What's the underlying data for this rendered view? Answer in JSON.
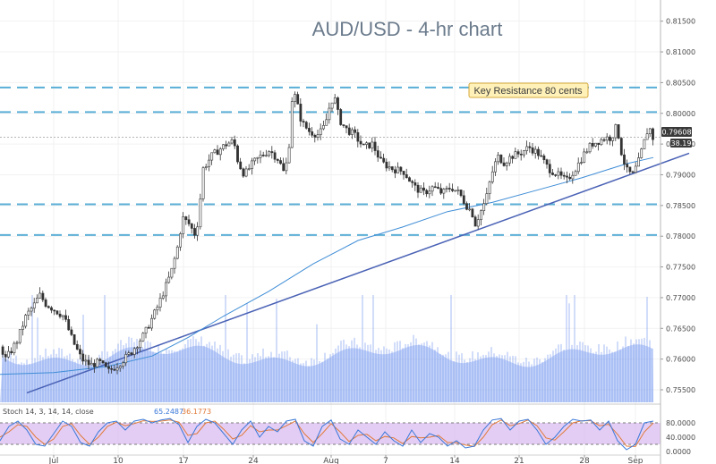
{
  "chart_data": {
    "type": "candlestick",
    "title": "AUD/USD - 4-hr chart",
    "x_labels": [
      "Jul",
      "10",
      "17",
      "24",
      "Aug",
      "7",
      "14",
      "21",
      "28",
      "Sep"
    ],
    "y_ticks": [
      "0.81500",
      "0.81000",
      "0.80500",
      "0.80000",
      "0.79500",
      "0.79000",
      "0.78500",
      "0.78000",
      "0.77500",
      "0.77000",
      "0.76500",
      "0.76000",
      "0.75500"
    ],
    "ylim": [
      0.7534,
      0.8167
    ],
    "price_label": "0.79608",
    "secondary_label": "38.19",
    "horizontal_levels": [
      0.8042,
      0.8002,
      0.7852,
      0.7802
    ],
    "annotation": "Key Resistance 80 cents",
    "price_path": [
      [
        0,
        0.762
      ],
      [
        5,
        0.76
      ],
      [
        10,
        0.761
      ],
      [
        18,
        0.763
      ],
      [
        28,
        0.767
      ],
      [
        38,
        0.769
      ],
      [
        43,
        0.7705
      ],
      [
        50,
        0.769
      ],
      [
        60,
        0.768
      ],
      [
        70,
        0.767
      ],
      [
        80,
        0.763
      ],
      [
        90,
        0.76
      ],
      [
        100,
        0.759
      ],
      [
        110,
        0.7595
      ],
      [
        120,
        0.758
      ],
      [
        130,
        0.759
      ],
      [
        145,
        0.761
      ],
      [
        160,
        0.764
      ],
      [
        175,
        0.7685
      ],
      [
        190,
        0.774
      ],
      [
        197,
        0.778
      ],
      [
        203,
        0.783
      ],
      [
        210,
        0.782
      ],
      [
        218,
        0.78
      ],
      [
        222,
        0.785
      ],
      [
        226,
        0.791
      ],
      [
        235,
        0.793
      ],
      [
        243,
        0.794
      ],
      [
        252,
        0.795
      ],
      [
        260,
        0.7955
      ],
      [
        265,
        0.792
      ],
      [
        272,
        0.79
      ],
      [
        282,
        0.792
      ],
      [
        290,
        0.793
      ],
      [
        300,
        0.794
      ],
      [
        310,
        0.7925
      ],
      [
        317,
        0.79
      ],
      [
        322,
        0.795
      ],
      [
        326,
        0.804
      ],
      [
        330,
        0.802
      ],
      [
        336,
        0.7985
      ],
      [
        345,
        0.797
      ],
      [
        355,
        0.7965
      ],
      [
        362,
        0.798
      ],
      [
        367,
        0.801
      ],
      [
        372,
        0.803
      ],
      [
        378,
        0.799
      ],
      [
        385,
        0.7975
      ],
      [
        395,
        0.7965
      ],
      [
        405,
        0.7945
      ],
      [
        415,
        0.795
      ],
      [
        425,
        0.792
      ],
      [
        437,
        0.791
      ],
      [
        450,
        0.7905
      ],
      [
        462,
        0.788
      ],
      [
        472,
        0.787
      ],
      [
        483,
        0.788
      ],
      [
        493,
        0.787
      ],
      [
        503,
        0.788
      ],
      [
        512,
        0.787
      ],
      [
        520,
        0.785
      ],
      [
        526,
        0.784
      ],
      [
        530,
        0.782
      ],
      [
        536,
        0.784
      ],
      [
        542,
        0.786
      ],
      [
        548,
        0.79
      ],
      [
        555,
        0.793
      ],
      [
        562,
        0.792
      ],
      [
        570,
        0.793
      ],
      [
        580,
        0.7935
      ],
      [
        590,
        0.7945
      ],
      [
        600,
        0.7935
      ],
      [
        612,
        0.791
      ],
      [
        622,
        0.79
      ],
      [
        632,
        0.789
      ],
      [
        642,
        0.791
      ],
      [
        652,
        0.7935
      ],
      [
        660,
        0.795
      ],
      [
        668,
        0.7955
      ],
      [
        675,
        0.796
      ],
      [
        682,
        0.796
      ],
      [
        688,
        0.798
      ],
      [
        694,
        0.793
      ],
      [
        700,
        0.7905
      ],
      [
        706,
        0.79
      ],
      [
        712,
        0.792
      ],
      [
        718,
        0.795
      ],
      [
        724,
        0.798
      ],
      [
        728,
        0.796
      ]
    ],
    "trendline": [
      [
        30,
        0.7545
      ],
      [
        770,
        0.7935
      ]
    ],
    "moving_average": [
      [
        0,
        0.7575
      ],
      [
        60,
        0.7578
      ],
      [
        120,
        0.7588
      ],
      [
        170,
        0.7605
      ],
      [
        210,
        0.7635
      ],
      [
        250,
        0.767
      ],
      [
        300,
        0.771
      ],
      [
        350,
        0.7755
      ],
      [
        400,
        0.7793
      ],
      [
        450,
        0.7815
      ],
      [
        500,
        0.784
      ],
      [
        550,
        0.7855
      ],
      [
        600,
        0.7875
      ],
      [
        650,
        0.7895
      ],
      [
        700,
        0.7918
      ],
      [
        730,
        0.7928
      ]
    ],
    "stochastic": {
      "label": "Stoch 14, 3, 14, 14, close",
      "k_value": "65.2487",
      "d_value": "36.1773",
      "ticks": [
        "80.0000",
        "40.0000",
        "0.0000"
      ],
      "upper": 80,
      "lower": 20,
      "k_path": [
        [
          0,
          30
        ],
        [
          10,
          70
        ],
        [
          20,
          85
        ],
        [
          30,
          60
        ],
        [
          40,
          20
        ],
        [
          50,
          15
        ],
        [
          60,
          50
        ],
        [
          70,
          85
        ],
        [
          80,
          70
        ],
        [
          90,
          25
        ],
        [
          100,
          15
        ],
        [
          110,
          55
        ],
        [
          120,
          80
        ],
        [
          130,
          85
        ],
        [
          140,
          60
        ],
        [
          150,
          85
        ],
        [
          160,
          90
        ],
        [
          170,
          80
        ],
        [
          180,
          88
        ],
        [
          190,
          92
        ],
        [
          200,
          75
        ],
        [
          210,
          25
        ],
        [
          220,
          70
        ],
        [
          230,
          90
        ],
        [
          240,
          80
        ],
        [
          250,
          50
        ],
        [
          260,
          20
        ],
        [
          270,
          60
        ],
        [
          280,
          85
        ],
        [
          290,
          40
        ],
        [
          300,
          70
        ],
        [
          310,
          55
        ],
        [
          320,
          85
        ],
        [
          330,
          90
        ],
        [
          340,
          30
        ],
        [
          350,
          15
        ],
        [
          360,
          70
        ],
        [
          370,
          88
        ],
        [
          380,
          35
        ],
        [
          390,
          20
        ],
        [
          400,
          60
        ],
        [
          410,
          40
        ],
        [
          420,
          20
        ],
        [
          430,
          55
        ],
        [
          440,
          30
        ],
        [
          450,
          15
        ],
        [
          460,
          60
        ],
        [
          470,
          25
        ],
        [
          480,
          50
        ],
        [
          490,
          40
        ],
        [
          500,
          15
        ],
        [
          510,
          30
        ],
        [
          520,
          10
        ],
        [
          530,
          15
        ],
        [
          540,
          60
        ],
        [
          550,
          88
        ],
        [
          560,
          92
        ],
        [
          570,
          60
        ],
        [
          580,
          85
        ],
        [
          590,
          90
        ],
        [
          600,
          60
        ],
        [
          610,
          20
        ],
        [
          620,
          40
        ],
        [
          630,
          70
        ],
        [
          640,
          90
        ],
        [
          650,
          85
        ],
        [
          660,
          88
        ],
        [
          670,
          60
        ],
        [
          680,
          85
        ],
        [
          690,
          30
        ],
        [
          700,
          5
        ],
        [
          710,
          20
        ],
        [
          720,
          80
        ],
        [
          730,
          85
        ]
      ],
      "d_path": [
        [
          0,
          40
        ],
        [
          10,
          55
        ],
        [
          20,
          75
        ],
        [
          30,
          70
        ],
        [
          40,
          40
        ],
        [
          50,
          20
        ],
        [
          60,
          35
        ],
        [
          70,
          70
        ],
        [
          80,
          78
        ],
        [
          90,
          45
        ],
        [
          100,
          20
        ],
        [
          110,
          40
        ],
        [
          120,
          70
        ],
        [
          130,
          82
        ],
        [
          140,
          72
        ],
        [
          150,
          78
        ],
        [
          160,
          86
        ],
        [
          170,
          84
        ],
        [
          180,
          85
        ],
        [
          190,
          88
        ],
        [
          200,
          82
        ],
        [
          210,
          45
        ],
        [
          220,
          50
        ],
        [
          230,
          80
        ],
        [
          240,
          85
        ],
        [
          250,
          62
        ],
        [
          260,
          35
        ],
        [
          270,
          45
        ],
        [
          280,
          72
        ],
        [
          290,
          55
        ],
        [
          300,
          60
        ],
        [
          310,
          60
        ],
        [
          320,
          72
        ],
        [
          330,
          85
        ],
        [
          340,
          50
        ],
        [
          350,
          25
        ],
        [
          360,
          50
        ],
        [
          370,
          78
        ],
        [
          380,
          55
        ],
        [
          390,
          28
        ],
        [
          400,
          45
        ],
        [
          410,
          48
        ],
        [
          420,
          30
        ],
        [
          430,
          42
        ],
        [
          440,
          38
        ],
        [
          450,
          22
        ],
        [
          460,
          42
        ],
        [
          470,
          38
        ],
        [
          480,
          40
        ],
        [
          490,
          45
        ],
        [
          500,
          25
        ],
        [
          510,
          25
        ],
        [
          520,
          18
        ],
        [
          530,
          14
        ],
        [
          540,
          40
        ],
        [
          550,
          75
        ],
        [
          560,
          88
        ],
        [
          570,
          72
        ],
        [
          580,
          78
        ],
        [
          590,
          88
        ],
        [
          600,
          72
        ],
        [
          610,
          38
        ],
        [
          620,
          32
        ],
        [
          630,
          55
        ],
        [
          640,
          80
        ],
        [
          650,
          86
        ],
        [
          660,
          86
        ],
        [
          670,
          72
        ],
        [
          680,
          76
        ],
        [
          690,
          48
        ],
        [
          700,
          15
        ],
        [
          710,
          14
        ],
        [
          720,
          55
        ],
        [
          730,
          80
        ]
      ]
    }
  },
  "colors": {
    "up": "#26a69a",
    "down": "#ef5350",
    "candle": "#333333",
    "level": "#5aaed6",
    "trend": "#4a62b5",
    "ma": "#3f8dd6",
    "volume": "#7d9ef0",
    "stoch_k": "#3a78d8",
    "stoch_d": "#e07a3a",
    "stoch_band": "#d9b8f0",
    "badge": "#3a3a3a",
    "annotation_bg": "#fff1b8",
    "annotation_border": "#d4a93c"
  }
}
